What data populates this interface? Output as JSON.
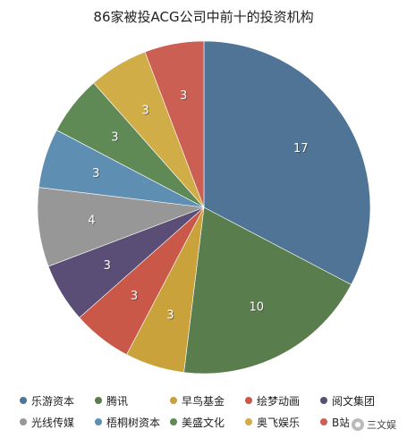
{
  "chart_data": {
    "type": "pie",
    "title": "86家被投ACG公司中前十的投资机构",
    "legend_position": "bottom",
    "slices": [
      {
        "label": "乐游资本",
        "value": 17,
        "color": "#4f7496"
      },
      {
        "label": "腾讯",
        "value": 10,
        "color": "#5a7d4d"
      },
      {
        "label": "早鸟基金",
        "value": 3,
        "color": "#c9a23b"
      },
      {
        "label": "绘梦动画",
        "value": 3,
        "color": "#c95849"
      },
      {
        "label": "阅文集团",
        "value": 3,
        "color": "#5b4e76"
      },
      {
        "label": "光线传媒",
        "value": 4,
        "color": "#979797"
      },
      {
        "label": "梧桐树资本",
        "value": 3,
        "color": "#5e8fb3"
      },
      {
        "label": "美盛文化",
        "value": 3,
        "color": "#5f8955"
      },
      {
        "label": "奥飞娱乐",
        "value": 3,
        "color": "#d1ad47"
      },
      {
        "label": "B站",
        "value": 3,
        "color": "#cb5f53"
      }
    ]
  },
  "watermark": {
    "text": "三文娱"
  }
}
